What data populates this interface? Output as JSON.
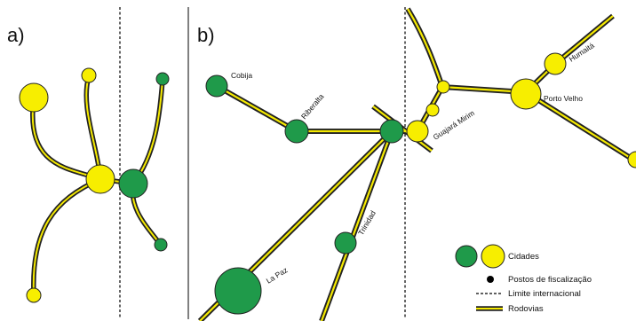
{
  "colors": {
    "road_outer": "#222222",
    "road_inner": "#f5ea00",
    "city_yellow": "#f7ee00",
    "city_green": "#1f9a4a",
    "border": "#000000"
  },
  "panels": {
    "a": {
      "label": "a)"
    },
    "b": {
      "label": "b)"
    }
  },
  "cities": {
    "cobija": "Cobija",
    "riberalta": "Riberalta",
    "guajara_mirim": "Guajará Mirim",
    "porto_velho": "Porto Velho",
    "humaita": "Humaitá",
    "trinidad": "Trinidad",
    "la_paz": "La Paz"
  },
  "legend": {
    "cities": "Cidades",
    "checkpoints": "Postos de fiscalização",
    "border": "Limite internacional",
    "roads": "Rodovias"
  }
}
